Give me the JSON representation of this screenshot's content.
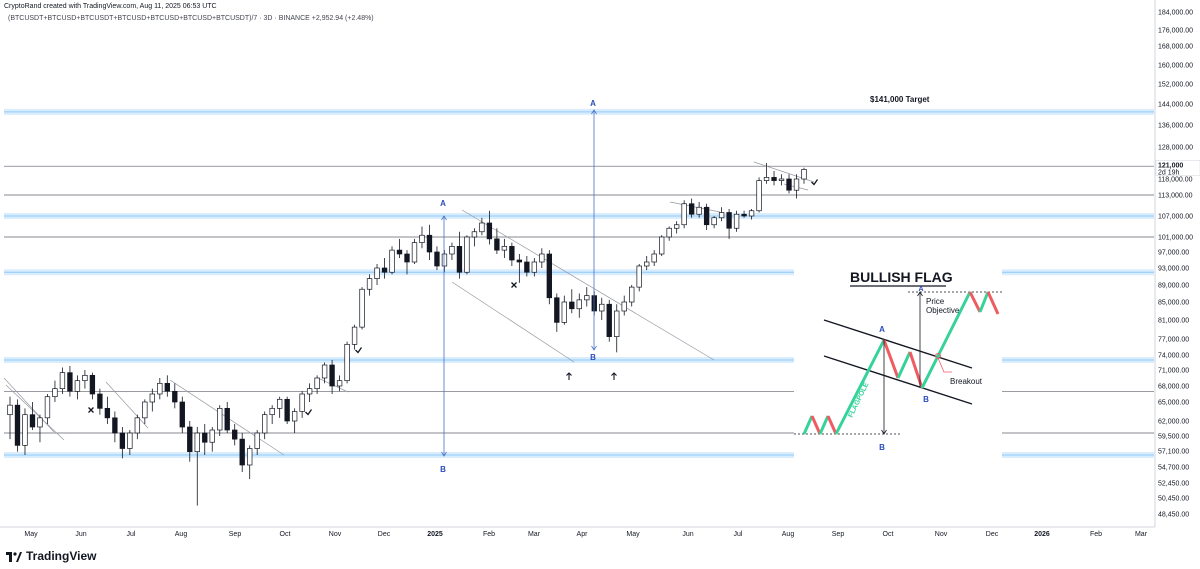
{
  "header": {
    "creator_line": "CryptoRand created with TradingView.com, Aug 11, 2025 06:53 UTC",
    "symbol_line": "(BTCUSDT+BTCUSD+BTCUSDT+BTCUSD+BTCUSD+BTCUSD+BTCUSDT)/7 · 3D · BINANCE  +2,952.94 (+2.48%)"
  },
  "footer": {
    "brand": "TradingView"
  },
  "chart_data": {
    "type": "candlestick",
    "ylim": [
      45000,
      185000
    ],
    "y_ticks": [
      "184,000.00",
      "176,000.00",
      "168,000.00",
      "160,000.00",
      "152,000.00",
      "144,000.00",
      "136,000.00",
      "128,000.00",
      "118,000.00",
      "113,000.00",
      "107,000.00",
      "101,000.00",
      "97,000.00",
      "93,000.00",
      "89,000.00",
      "85,000.00",
      "81,000.00",
      "77,000.00",
      "74,000.00",
      "71,000.00",
      "68,000.00",
      "65,000.00",
      "62,000.00",
      "59,500.00",
      "57,100.00",
      "54,700.00",
      "52,450.00",
      "50,450.00",
      "48,450.00"
    ],
    "x_ticks": [
      "May",
      "Jun",
      "Jul",
      "Aug",
      "Sep",
      "Oct",
      "Nov",
      "Dec",
      "2025",
      "Feb",
      "Mar",
      "Apr",
      "May",
      "Jun",
      "Jul",
      "Aug",
      "Sep",
      "Oct",
      "Nov",
      "Dec",
      "2026",
      "Feb",
      "Mar"
    ],
    "price_labels": [
      "121,000",
      "2d 19h"
    ],
    "horizontal_levels": [
      141000,
      122000,
      113000,
      107000,
      101000,
      92000,
      73000,
      67000,
      60000,
      56500
    ],
    "highlighted_levels": [
      141000,
      107000,
      92000,
      73000,
      56500
    ],
    "annotations": {
      "target": "$141,000 Target",
      "measure_big": {
        "top_label": "A",
        "bottom_label": "B"
      },
      "measure_mid": {
        "top_label": "A",
        "bottom_label": "B"
      }
    },
    "inset": {
      "title": "BULLISH FLAG",
      "price_objective": "Price Objective",
      "breakout": "Breakout",
      "flagpole": "FLAGPOLE",
      "label_a_top": "A",
      "label_a": "A",
      "label_b": "B",
      "label_b_bottom": "B"
    },
    "candles": [
      [
        63000,
        66000,
        59000,
        64500
      ],
      [
        64500,
        65500,
        57000,
        58000
      ],
      [
        58000,
        64000,
        56500,
        63000
      ],
      [
        63000,
        65000,
        60500,
        61000
      ],
      [
        61000,
        63000,
        58500,
        62500
      ],
      [
        62500,
        66500,
        61500,
        66000
      ],
      [
        66000,
        69000,
        65000,
        67500
      ],
      [
        67500,
        71500,
        66500,
        70500
      ],
      [
        70500,
        71800,
        66000,
        67000
      ],
      [
        67000,
        70000,
        65500,
        69000
      ],
      [
        69000,
        71000,
        67500,
        70000
      ],
      [
        70000,
        70500,
        65500,
        66500
      ],
      [
        66500,
        67500,
        63000,
        64000
      ],
      [
        64000,
        66000,
        61500,
        62500
      ],
      [
        62500,
        63500,
        58500,
        60000
      ],
      [
        60000,
        61000,
        56000,
        57500
      ],
      [
        57500,
        60500,
        56500,
        60000
      ],
      [
        60000,
        63000,
        59000,
        62500
      ],
      [
        62500,
        65500,
        61500,
        65000
      ],
      [
        65000,
        67500,
        63500,
        66500
      ],
      [
        66500,
        69500,
        65500,
        68500
      ],
      [
        68500,
        70000,
        66000,
        67000
      ],
      [
        67000,
        68500,
        64000,
        65000
      ],
      [
        65000,
        66000,
        60000,
        61000
      ],
      [
        61000,
        62000,
        55500,
        57000
      ],
      [
        57000,
        61000,
        49500,
        60000
      ],
      [
        60000,
        61500,
        56500,
        58500
      ],
      [
        58500,
        61000,
        57000,
        60500
      ],
      [
        60500,
        64500,
        59500,
        64000
      ],
      [
        64000,
        65000,
        60000,
        60500
      ],
      [
        60500,
        61500,
        58000,
        59000
      ],
      [
        59000,
        60000,
        54000,
        55000
      ],
      [
        55000,
        58000,
        53000,
        57500
      ],
      [
        57500,
        60500,
        56500,
        60000
      ],
      [
        60000,
        63500,
        59000,
        63000
      ],
      [
        63000,
        64500,
        61500,
        64000
      ],
      [
        64000,
        66000,
        62500,
        65500
      ],
      [
        65500,
        66000,
        61500,
        62000
      ],
      [
        62000,
        64000,
        60000,
        63500
      ],
      [
        63500,
        67000,
        62500,
        66500
      ],
      [
        66500,
        68500,
        65000,
        67500
      ],
      [
        67500,
        70000,
        66500,
        69500
      ],
      [
        69500,
        72500,
        68500,
        72000
      ],
      [
        72000,
        73000,
        66500,
        68000
      ],
      [
        68000,
        70000,
        67000,
        69000
      ],
      [
        69000,
        76500,
        68500,
        76000
      ],
      [
        76000,
        80000,
        75000,
        79500
      ],
      [
        79500,
        88500,
        79000,
        88000
      ],
      [
        88000,
        91500,
        86500,
        90500
      ],
      [
        90500,
        94000,
        89000,
        93000
      ],
      [
        93000,
        95500,
        90500,
        92000
      ],
      [
        92000,
        98500,
        91500,
        97500
      ],
      [
        97500,
        100500,
        95500,
        96500
      ],
      [
        96500,
        97500,
        91500,
        94500
      ],
      [
        94500,
        100500,
        94000,
        99500
      ],
      [
        99500,
        104000,
        98000,
        101500
      ],
      [
        101500,
        104500,
        95000,
        97000
      ],
      [
        97000,
        98500,
        92500,
        93500
      ],
      [
        93500,
        97500,
        92000,
        96500
      ],
      [
        96500,
        99500,
        95000,
        98500
      ],
      [
        98500,
        102500,
        90500,
        92000
      ],
      [
        92000,
        101500,
        91500,
        101000
      ],
      [
        101000,
        103500,
        98500,
        102500
      ],
      [
        102500,
        106500,
        101500,
        105000
      ],
      [
        105000,
        108500,
        99000,
        100500
      ],
      [
        100500,
        103500,
        96500,
        97500
      ],
      [
        97500,
        100500,
        95500,
        98500
      ],
      [
        98500,
        99500,
        93500,
        95000
      ],
      [
        95000,
        96500,
        89500,
        94500
      ],
      [
        94500,
        96000,
        91000,
        92000
      ],
      [
        92000,
        95500,
        91000,
        94500
      ],
      [
        94500,
        98000,
        93000,
        96500
      ],
      [
        96500,
        97500,
        84500,
        86000
      ],
      [
        86000,
        87000,
        78500,
        80500
      ],
      [
        80500,
        86500,
        80000,
        85000
      ],
      [
        85000,
        88000,
        82500,
        83500
      ],
      [
        83500,
        87000,
        81500,
        85500
      ],
      [
        85500,
        88500,
        84000,
        86500
      ],
      [
        86500,
        87500,
        82000,
        83000
      ],
      [
        83000,
        86000,
        81000,
        84500
      ],
      [
        84500,
        85500,
        76500,
        77500
      ],
      [
        77500,
        84500,
        74500,
        83000
      ],
      [
        83000,
        86500,
        82000,
        85000
      ],
      [
        85000,
        89000,
        84000,
        88500
      ],
      [
        88500,
        94000,
        87500,
        93500
      ],
      [
        93500,
        96000,
        92500,
        94500
      ],
      [
        94500,
        97500,
        93500,
        96500
      ],
      [
        96500,
        101500,
        96000,
        101000
      ],
      [
        101000,
        104000,
        100000,
        103500
      ],
      [
        103500,
        105500,
        102000,
        104500
      ],
      [
        104500,
        111500,
        103500,
        110500
      ],
      [
        110500,
        112000,
        106500,
        107500
      ],
      [
        107500,
        111000,
        106500,
        109500
      ],
      [
        109500,
        110500,
        103000,
        104500
      ],
      [
        104500,
        107000,
        103500,
        106500
      ],
      [
        106500,
        109500,
        105500,
        108000
      ],
      [
        108000,
        109000,
        100500,
        103500
      ],
      [
        103500,
        108500,
        102500,
        107500
      ],
      [
        107500,
        108500,
        106500,
        107000
      ],
      [
        107000,
        109000,
        106000,
        108500
      ],
      [
        108500,
        118500,
        108000,
        117500
      ],
      [
        117500,
        123000,
        116500,
        118500
      ],
      [
        118500,
        120500,
        116000,
        117500
      ],
      [
        117500,
        119500,
        116000,
        118000
      ],
      [
        118000,
        119500,
        113500,
        114500
      ],
      [
        114500,
        119500,
        112000,
        118000
      ],
      [
        118000,
        121500,
        116500,
        121000
      ]
    ]
  }
}
